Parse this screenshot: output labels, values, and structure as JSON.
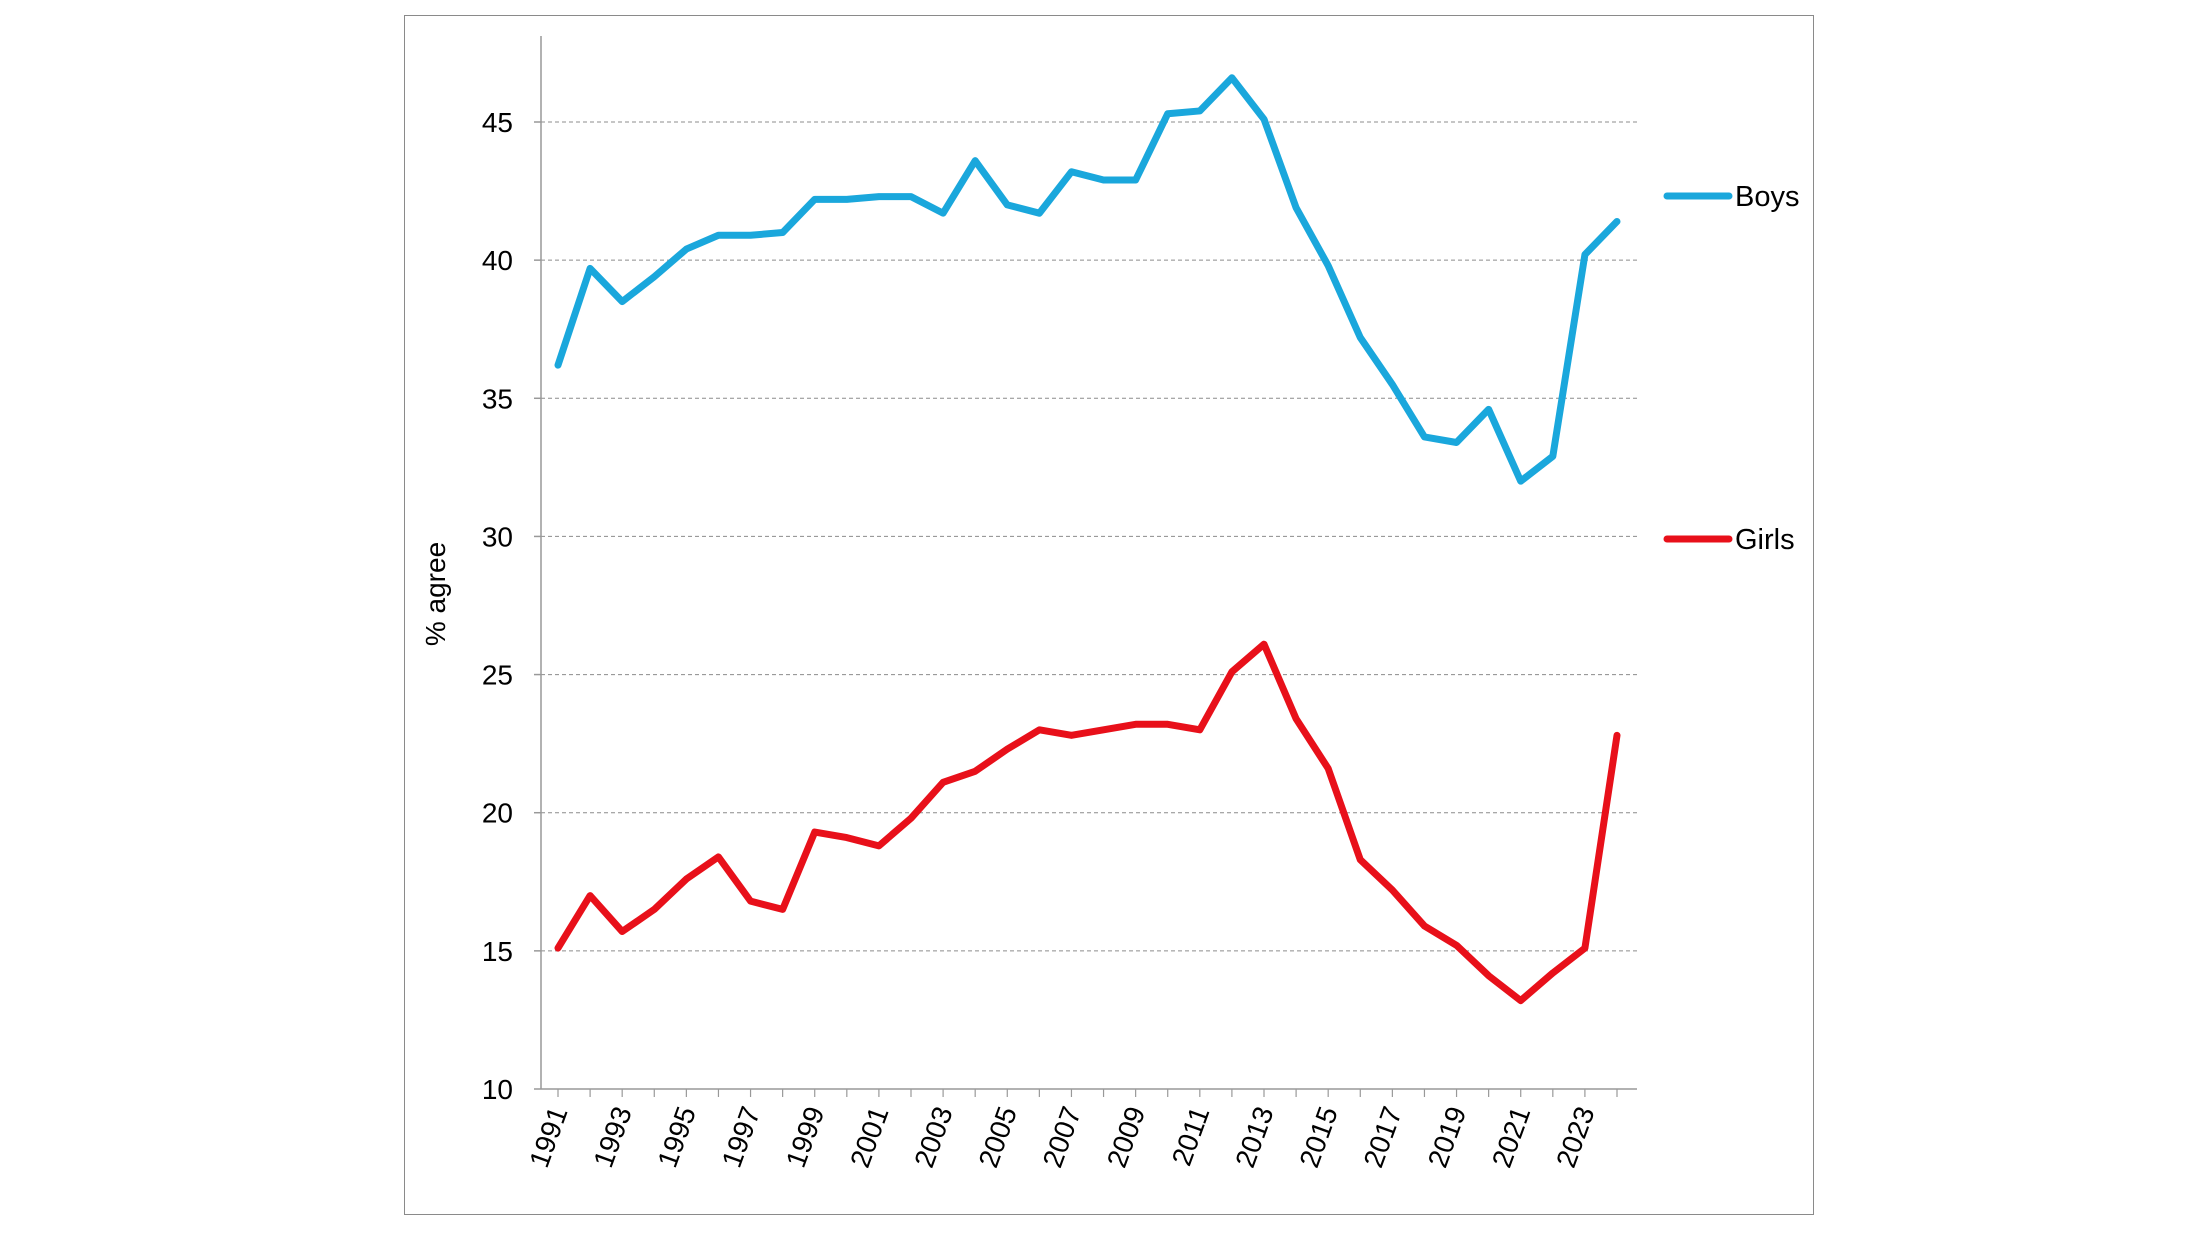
{
  "chart_data": {
    "type": "line",
    "title": "",
    "xlabel": "",
    "ylabel": "% agree",
    "x": [
      1991,
      1992,
      1993,
      1994,
      1995,
      1996,
      1997,
      1998,
      1999,
      2000,
      2001,
      2002,
      2003,
      2004,
      2005,
      2006,
      2007,
      2008,
      2009,
      2010,
      2011,
      2012,
      2013,
      2014,
      2015,
      2016,
      2017,
      2018,
      2019,
      2020,
      2021,
      2022,
      2023,
      2024
    ],
    "x_tick_labels": [
      "1991",
      "1993",
      "1995",
      "1997",
      "1999",
      "2001",
      "2003",
      "2005",
      "2007",
      "2009",
      "2011",
      "2013",
      "2015",
      "2017",
      "2019",
      "2021",
      "2023"
    ],
    "ylim": [
      10,
      48
    ],
    "y_ticks": [
      10,
      15,
      20,
      25,
      30,
      35,
      40,
      45
    ],
    "grid": true,
    "legend_placement": "right",
    "series": [
      {
        "name": "Boys",
        "color": "#1aa7dc",
        "values": [
          36.2,
          39.7,
          38.5,
          39.4,
          40.4,
          40.9,
          40.9,
          41.0,
          42.2,
          42.2,
          42.3,
          42.3,
          41.7,
          43.6,
          42.0,
          41.7,
          43.2,
          42.9,
          42.9,
          45.3,
          45.4,
          46.6,
          45.1,
          41.9,
          39.8,
          37.2,
          35.5,
          33.6,
          33.4,
          34.6,
          32.0,
          32.9,
          40.2,
          41.4
        ]
      },
      {
        "name": "Girls",
        "color": "#e8101a",
        "values": [
          15.1,
          17.0,
          15.7,
          16.5,
          17.6,
          18.4,
          16.8,
          16.5,
          19.3,
          19.1,
          18.8,
          19.8,
          21.1,
          21.5,
          22.3,
          23.0,
          22.8,
          23.0,
          23.2,
          23.2,
          23.0,
          25.1,
          26.1,
          23.4,
          21.6,
          18.3,
          17.2,
          15.9,
          15.2,
          14.1,
          13.2,
          14.2,
          15.1,
          22.8
        ]
      }
    ]
  }
}
